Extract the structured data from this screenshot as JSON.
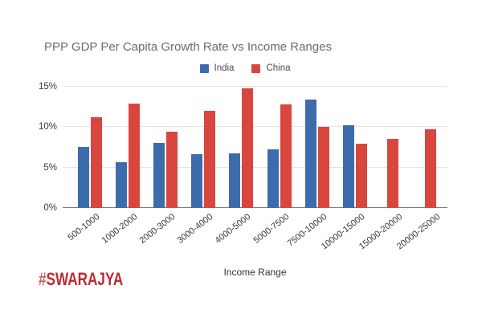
{
  "branding": {
    "hash": "#",
    "name": "SWARAJYA"
  },
  "colors": {
    "india": "#3c6cac",
    "china": "#d9463e",
    "grid": "#e4e4e4",
    "axis": "#7d7d7d",
    "title_text": "#6b6b6b",
    "tick_text": "#3c3c3c",
    "logo_red": "#bf2b30"
  },
  "chart_data": {
    "type": "bar",
    "title": "PPP GDP Per Capita Growth Rate vs Income Ranges",
    "xlabel": "Income Range",
    "ylabel": "",
    "categories": [
      "500-1000",
      "1000-2000",
      "2000-3000",
      "3000-4000",
      "4000-5000",
      "5000-7500",
      "7500-10000",
      "10000-15000",
      "15000-20000",
      "20000-25000"
    ],
    "series": [
      {
        "name": "India",
        "color": "#3c6cac",
        "values": [
          7.6,
          5.7,
          8.1,
          6.7,
          6.8,
          7.3,
          13.4,
          10.2,
          null,
          null
        ]
      },
      {
        "name": "China",
        "color": "#d9463e",
        "values": [
          11.2,
          12.9,
          9.4,
          12.0,
          14.8,
          12.8,
          10.0,
          8.0,
          8.5,
          9.7
        ]
      }
    ],
    "y_tick_labels": [
      "0%",
      "5%",
      "10%",
      "15%"
    ],
    "y_tick_values": [
      0,
      5,
      10,
      15
    ],
    "ylim": [
      0,
      15
    ],
    "grid": true,
    "legend_position": "top"
  }
}
